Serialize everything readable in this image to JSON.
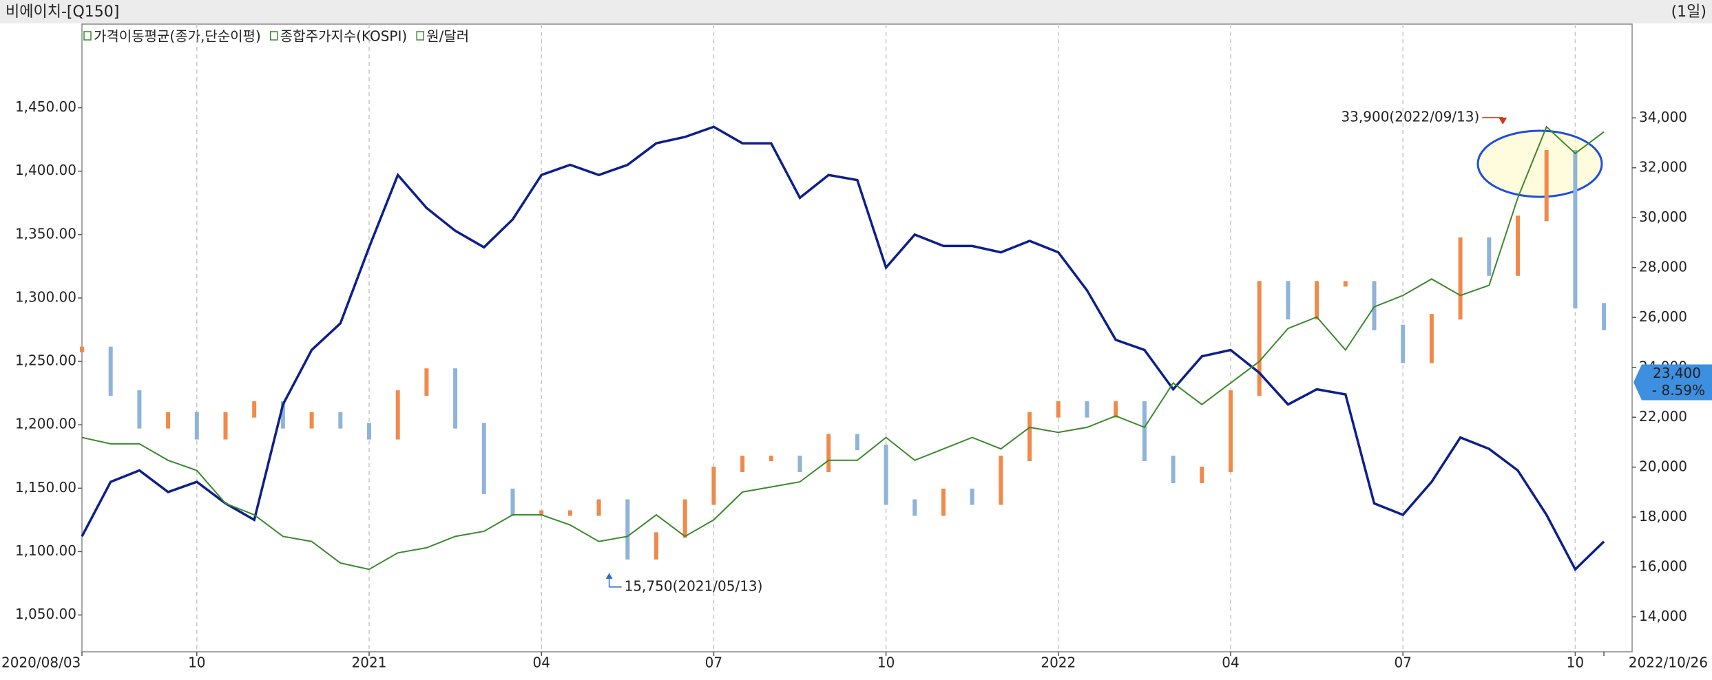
{
  "chart_data": {
    "type": "stock",
    "title": "비에이치-[Q150]",
    "period": "(1일)",
    "categories": [
      "2020/08/03",
      null,
      null,
      null,
      "10",
      null,
      null,
      null,
      null,
      null,
      "2021",
      null,
      null,
      null,
      null,
      null,
      "04",
      null,
      null,
      null,
      null,
      null,
      "07",
      null,
      null,
      null,
      null,
      null,
      "10",
      null,
      null,
      null,
      null,
      null,
      "2022",
      null,
      null,
      null,
      null,
      null,
      "04",
      null,
      null,
      null,
      null,
      null,
      "07",
      null,
      null,
      null,
      null,
      null,
      "10",
      "2022/10/26"
    ],
    "series": [
      {
        "name": "가격이동평균(종가,단순이평)",
        "axis": "y2",
        "up_color": "#f08a4b",
        "down_color": "#8fb3d9",
        "values": [
          24720,
          22970,
          21660,
          22100,
          21220,
          22100,
          22530,
          21660,
          22100,
          21660,
          21220,
          22970,
          23850,
          21660,
          19030,
          18160,
          18160,
          18160,
          18600,
          16410,
          17280,
          18600,
          19910,
          20350,
          20350,
          19910,
          21220,
          20790,
          18600,
          18160,
          19030,
          18600,
          20350,
          22100,
          22530,
          22100,
          22530,
          20350,
          19470,
          19910,
          22970,
          27350,
          26030,
          27350,
          27350,
          25600,
          24280,
          26030,
          29100,
          27780,
          29970,
          32600,
          26470,
          25600
        ]
      },
      {
        "name": "종합주가지수(KOSPI)",
        "color": "#0d1f8c",
        "values": [
          1112,
          1155,
          1164,
          1147,
          1155,
          1138,
          1125,
          1216,
          1259,
          1280,
          1340,
          1397,
          1371,
          1353,
          1340,
          1362,
          1397,
          1405,
          1397,
          1405,
          1422,
          1427,
          1435,
          1422,
          1422,
          1379,
          1397,
          1393,
          1324,
          1350,
          1341,
          1341,
          1336,
          1345,
          1336,
          1306,
          1267,
          1259,
          1228,
          1254,
          1259,
          1241,
          1216,
          1228,
          1224,
          1138,
          1129,
          1155,
          1190,
          1181,
          1164,
          1129,
          1086,
          1108
        ]
      },
      {
        "name": "원/달러",
        "color": "#3a8a2a",
        "values": [
          1190,
          1185,
          1185,
          1172,
          1164,
          1138,
          1129,
          1112,
          1108,
          1091,
          1086,
          1099,
          1103,
          1112,
          1116,
          1129,
          1129,
          1121,
          1108,
          1112,
          1129,
          1112,
          1125,
          1147,
          1151,
          1155,
          1172,
          1172,
          1190,
          1172,
          1181,
          1190,
          1181,
          1198,
          1194,
          1198,
          1207,
          1198,
          1233,
          1216,
          1233,
          1250,
          1276,
          1285,
          1259,
          1293,
          1302,
          1315,
          1302,
          1310,
          1379,
          1435,
          1414,
          1431
        ]
      }
    ],
    "ylim": [
      1021,
      1516
    ],
    "yticks": [
      {
        "value": 1050,
        "label": "1,050.00"
      },
      {
        "value": 1100,
        "label": "1,100.00"
      },
      {
        "value": 1150,
        "label": "1,150.00"
      },
      {
        "value": 1200,
        "label": "1,200.00"
      },
      {
        "value": 1250,
        "label": "1,250.00"
      },
      {
        "value": 1300,
        "label": "1,300.00"
      },
      {
        "value": 1350,
        "label": "1,350.00"
      },
      {
        "value": 1400,
        "label": "1,400.00"
      },
      {
        "value": 1450,
        "label": "1,450.00"
      }
    ],
    "y2lim": [
      12600,
      37760
    ],
    "y2ticks": [
      {
        "value": 14000,
        "label": "14,000"
      },
      {
        "value": 16000,
        "label": "16,000"
      },
      {
        "value": 18000,
        "label": "18,000"
      },
      {
        "value": 20000,
        "label": "20,000"
      },
      {
        "value": 22000,
        "label": "22,000"
      },
      {
        "value": 24000,
        "label": "24,000"
      },
      {
        "value": 26000,
        "label": "26,000"
      },
      {
        "value": 28000,
        "label": "28,000"
      },
      {
        "value": 30000,
        "label": "30,000"
      },
      {
        "value": 32000,
        "label": "32,000"
      },
      {
        "value": 34000,
        "label": "34,000"
      }
    ],
    "high_annotation": {
      "value": 33900,
      "label": "33,900(2022/09/13)",
      "color": "#cc3a1a"
    },
    "low_annotation": {
      "value": 15750,
      "label": "15,750(2021/05/13)",
      "color": "#2a6cc8"
    },
    "last_price": {
      "value": 23400,
      "label": "23,400",
      "change": "- 8.59%",
      "color": "#3d8fe0"
    },
    "grid": true
  }
}
